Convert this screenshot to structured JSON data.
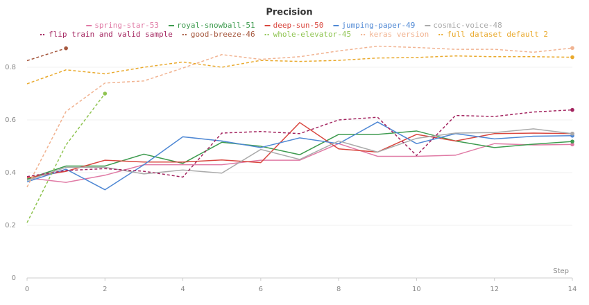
{
  "chart_data": {
    "type": "line",
    "title": "Precision",
    "x_label": "Step",
    "x": [
      0,
      1,
      2,
      3,
      4,
      5,
      6,
      7,
      8,
      9,
      10,
      11,
      12,
      13,
      14
    ],
    "xlim": [
      0,
      14
    ],
    "xticks": [
      0,
      2,
      4,
      6,
      8,
      10,
      12,
      14
    ],
    "ylim": [
      0,
      0.9
    ],
    "yticks": [
      0,
      0.2,
      0.4,
      0.6,
      0.8
    ],
    "grid": true,
    "series": [
      {
        "name": "spring-star-53",
        "color": "#e07aa5",
        "dashed": false,
        "values": [
          0.38,
          0.363,
          0.39,
          0.43,
          0.43,
          0.43,
          0.447,
          0.447,
          0.51,
          0.462,
          0.462,
          0.466,
          0.51,
          0.505,
          0.507
        ]
      },
      {
        "name": "royal-snowball-51",
        "color": "#3e9b4f",
        "dashed": false,
        "values": [
          0.375,
          0.425,
          0.425,
          0.47,
          0.435,
          0.515,
          0.5,
          0.468,
          0.545,
          0.545,
          0.558,
          0.52,
          0.495,
          0.508,
          0.518
        ]
      },
      {
        "name": "deep-sun-50",
        "color": "#d9473f",
        "dashed": false,
        "values": [
          0.38,
          0.405,
          0.447,
          0.44,
          0.44,
          0.448,
          0.438,
          0.59,
          0.49,
          0.478,
          0.545,
          0.52,
          0.548,
          0.55,
          0.548
        ]
      },
      {
        "name": "jumping-paper-49",
        "color": "#4f88d4",
        "dashed": false,
        "values": [
          0.365,
          0.413,
          0.335,
          0.43,
          0.536,
          0.52,
          0.495,
          0.532,
          0.51,
          0.592,
          0.51,
          0.548,
          0.528,
          0.538,
          0.54
        ]
      },
      {
        "name": "cosmic-voice-48",
        "color": "#aaaaaa",
        "dashed": false,
        "values": [
          0.37,
          0.42,
          0.42,
          0.395,
          0.41,
          0.398,
          0.488,
          0.45,
          0.52,
          0.478,
          0.53,
          0.55,
          0.552,
          0.566,
          0.548
        ]
      },
      {
        "name": "flip train and valid sample",
        "color": "#a3245f",
        "dashed": true,
        "values": [
          0.385,
          0.408,
          0.415,
          0.405,
          0.383,
          0.55,
          0.556,
          0.548,
          0.6,
          0.61,
          0.465,
          0.617,
          0.613,
          0.63,
          0.638
        ]
      },
      {
        "name": "good-breeze-46",
        "color": "#a5573d",
        "dashed": true,
        "values": [
          0.825,
          0.872,
          null,
          null,
          null,
          null,
          null,
          null,
          null,
          null,
          null,
          null,
          null,
          null,
          null
        ]
      },
      {
        "name": "whole-elevator-45",
        "color": "#8fc451",
        "dashed": true,
        "values": [
          0.21,
          0.505,
          0.7,
          null,
          null,
          null,
          null,
          null,
          null,
          null,
          null,
          null,
          null,
          null,
          null
        ]
      },
      {
        "name": "keras version",
        "color": "#f1b391",
        "dashed": true,
        "values": [
          0.345,
          0.632,
          0.74,
          0.748,
          0.797,
          0.848,
          0.83,
          0.84,
          0.862,
          0.88,
          0.875,
          0.868,
          0.868,
          0.857,
          0.873
        ]
      },
      {
        "name": "full dataset default 2",
        "color": "#e9a92c",
        "dashed": true,
        "values": [
          0.737,
          0.79,
          0.775,
          0.8,
          0.82,
          0.8,
          0.826,
          0.822,
          0.826,
          0.835,
          0.837,
          0.843,
          0.84,
          0.84,
          0.838
        ]
      }
    ]
  }
}
